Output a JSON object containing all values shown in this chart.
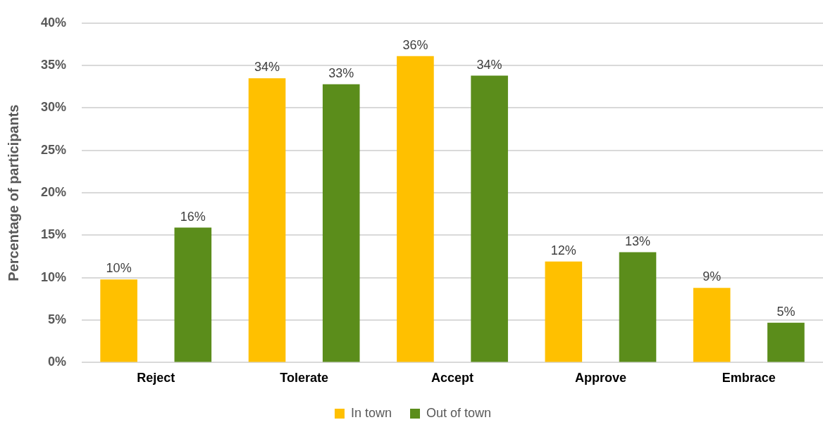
{
  "chart_data": {
    "type": "bar",
    "ylabel": "Percentage of participants",
    "categories": [
      "Reject",
      "Tolerate",
      "Accept",
      "Approve",
      "Embrace"
    ],
    "series": [
      {
        "name": "In town",
        "color": "#ffc000",
        "values": [
          9.8,
          33.5,
          36.1,
          11.9,
          8.8
        ],
        "value_labels": [
          "10%",
          "34%",
          "36%",
          "12%",
          "9%"
        ]
      },
      {
        "name": "Out of town",
        "color": "#5b8d1b",
        "values": [
          15.9,
          32.8,
          33.8,
          13.0,
          4.7
        ],
        "value_labels": [
          "16%",
          "33%",
          "34%",
          "13%",
          "5%"
        ]
      }
    ],
    "ylim": [
      0,
      40
    ],
    "yticks": [
      {
        "value": 0,
        "label": "0%"
      },
      {
        "value": 5,
        "label": "5%"
      },
      {
        "value": 10,
        "label": "10%"
      },
      {
        "value": 15,
        "label": "15%"
      },
      {
        "value": 20,
        "label": "20%"
      },
      {
        "value": 25,
        "label": "25%"
      },
      {
        "value": 30,
        "label": "30%"
      },
      {
        "value": 35,
        "label": "35%"
      },
      {
        "value": 40,
        "label": "40%"
      }
    ],
    "grid": "y",
    "legend": "bottom"
  }
}
